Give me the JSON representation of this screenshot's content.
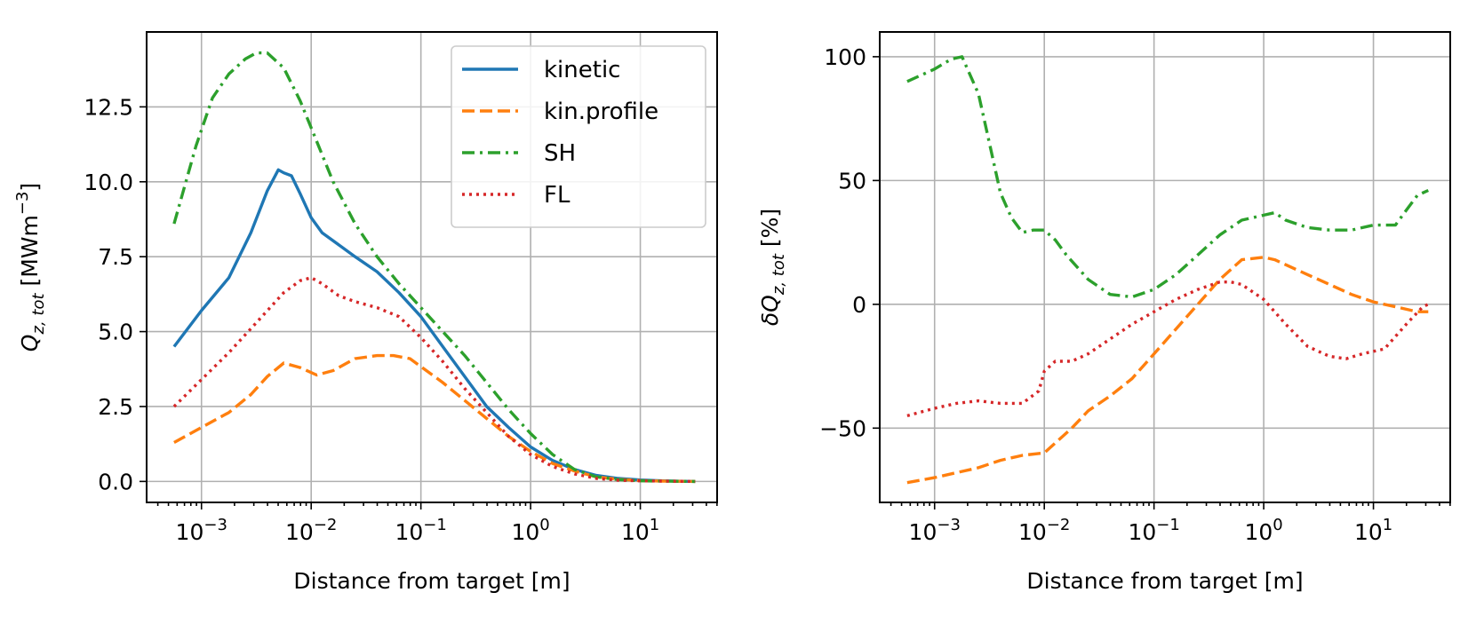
{
  "chart_data": [
    {
      "type": "line",
      "xscale": "log",
      "xlim_exp": [
        -3.5,
        1.7
      ],
      "ylim": [
        -0.7,
        15.0
      ],
      "xlabel": "Distance from target [m]",
      "ylabel": "Q_z,tot [MWm^-3]",
      "ylabel_parts": {
        "q": "Q",
        "sub": "z, tot",
        "unit_pre": " [MWm",
        "unit_sup": "−3",
        "unit_post": "]"
      },
      "x_ticks": [
        {
          "exp": -3,
          "base": "10",
          "sup": "−3"
        },
        {
          "exp": -2,
          "base": "10",
          "sup": "−2"
        },
        {
          "exp": -1,
          "base": "10",
          "sup": "−1"
        },
        {
          "exp": 0,
          "base": "10",
          "sup": "0"
        },
        {
          "exp": 1,
          "base": "10",
          "sup": "1"
        }
      ],
      "y_ticks": [
        {
          "value": 0.0,
          "label": "0.0"
        },
        {
          "value": 2.5,
          "label": "2.5"
        },
        {
          "value": 5.0,
          "label": "5.0"
        },
        {
          "value": 7.5,
          "label": "7.5"
        },
        {
          "value": 10.0,
          "label": "10.0"
        },
        {
          "value": 12.5,
          "label": "12.5"
        }
      ],
      "grid": true,
      "legend": {
        "position": "top-right",
        "entries": [
          {
            "label": "kinetic",
            "color": "#1f77b4",
            "dash": "solid"
          },
          {
            "label": "kin.profile",
            "color": "#ff7f0e",
            "dash": "dashed"
          },
          {
            "label": "SH",
            "color": "#2ca02c",
            "dash": "dashdot"
          },
          {
            "label": "FL",
            "color": "#d62728",
            "dash": "dotted"
          }
        ]
      },
      "series": [
        {
          "name": "kinetic",
          "color": "#1f77b4",
          "dash": "solid",
          "log10x": [
            -3.25,
            -3.0,
            -2.75,
            -2.55,
            -2.4,
            -2.3,
            -2.25,
            -2.18,
            -2.1,
            -2.0,
            -1.9,
            -1.75,
            -1.6,
            -1.4,
            -1.2,
            -1.0,
            -0.8,
            -0.6,
            -0.4,
            -0.2,
            0.0,
            0.2,
            0.4,
            0.6,
            0.8,
            1.0,
            1.2,
            1.5
          ],
          "y": [
            4.5,
            5.7,
            6.8,
            8.3,
            9.7,
            10.4,
            10.3,
            10.2,
            9.6,
            8.8,
            8.3,
            7.9,
            7.5,
            7.0,
            6.3,
            5.5,
            4.5,
            3.5,
            2.5,
            1.8,
            1.15,
            0.7,
            0.4,
            0.2,
            0.1,
            0.05,
            0.02,
            0.0
          ]
        },
        {
          "name": "kin.profile",
          "color": "#ff7f0e",
          "dash": "dashed",
          "log10x": [
            -3.25,
            -3.0,
            -2.75,
            -2.55,
            -2.4,
            -2.25,
            -2.1,
            -1.95,
            -1.8,
            -1.6,
            -1.4,
            -1.25,
            -1.1,
            -0.95,
            -0.8,
            -0.6,
            -0.4,
            -0.2,
            0.0,
            0.2,
            0.4,
            0.6,
            0.8,
            1.0,
            1.2,
            1.5
          ],
          "y": [
            1.3,
            1.8,
            2.3,
            2.9,
            3.5,
            3.95,
            3.8,
            3.55,
            3.7,
            4.1,
            4.2,
            4.2,
            4.1,
            3.7,
            3.3,
            2.7,
            2.1,
            1.5,
            1.0,
            0.6,
            0.35,
            0.15,
            0.07,
            0.03,
            0.01,
            0.0
          ]
        },
        {
          "name": "SH",
          "color": "#2ca02c",
          "dash": "dashdot",
          "log10x": [
            -3.25,
            -3.05,
            -2.9,
            -2.75,
            -2.6,
            -2.5,
            -2.4,
            -2.25,
            -2.1,
            -2.0,
            -1.8,
            -1.6,
            -1.4,
            -1.2,
            -1.0,
            -0.8,
            -0.6,
            -0.4,
            -0.2,
            0.0,
            0.2,
            0.4,
            0.6,
            0.8,
            1.0,
            1.2,
            1.5
          ],
          "y": [
            8.6,
            11.2,
            12.8,
            13.6,
            14.1,
            14.3,
            14.3,
            13.8,
            12.7,
            11.8,
            10.0,
            8.6,
            7.5,
            6.6,
            5.8,
            5.0,
            4.2,
            3.3,
            2.4,
            1.6,
            0.9,
            0.4,
            0.15,
            0.06,
            0.02,
            0.01,
            0.0
          ]
        },
        {
          "name": "FL",
          "color": "#d62728",
          "dash": "dotted",
          "log10x": [
            -3.25,
            -3.0,
            -2.75,
            -2.5,
            -2.25,
            -2.1,
            -2.0,
            -1.9,
            -1.75,
            -1.6,
            -1.4,
            -1.2,
            -1.0,
            -0.8,
            -0.6,
            -0.4,
            -0.2,
            0.0,
            0.2,
            0.4,
            0.6,
            0.8,
            1.0,
            1.2,
            1.5
          ],
          "y": [
            2.5,
            3.4,
            4.3,
            5.3,
            6.3,
            6.7,
            6.8,
            6.6,
            6.2,
            6.0,
            5.8,
            5.5,
            4.8,
            4.0,
            3.1,
            2.3,
            1.5,
            0.9,
            0.5,
            0.25,
            0.1,
            0.04,
            0.02,
            0.01,
            0.0
          ]
        }
      ]
    },
    {
      "type": "line",
      "xscale": "log",
      "xlim_exp": [
        -3.5,
        1.7
      ],
      "ylim": [
        -80,
        110
      ],
      "xlabel": "Distance from target [m]",
      "ylabel": "δQ_z,tot [%]",
      "ylabel_parts": {
        "q": "δQ",
        "sub": "z, tot",
        "unit_pre": " [%]",
        "unit_sup": "",
        "unit_post": ""
      },
      "x_ticks": [
        {
          "exp": -3,
          "base": "10",
          "sup": "−3"
        },
        {
          "exp": -2,
          "base": "10",
          "sup": "−2"
        },
        {
          "exp": -1,
          "base": "10",
          "sup": "−1"
        },
        {
          "exp": 0,
          "base": "10",
          "sup": "0"
        },
        {
          "exp": 1,
          "base": "10",
          "sup": "1"
        }
      ],
      "y_ticks": [
        {
          "value": -50,
          "label": "−50"
        },
        {
          "value": 0,
          "label": "0"
        },
        {
          "value": 50,
          "label": "50"
        },
        {
          "value": 100,
          "label": "100"
        }
      ],
      "grid": true,
      "series": [
        {
          "name": "kin.profile",
          "color": "#ff7f0e",
          "dash": "dashed",
          "log10x": [
            -3.25,
            -3.0,
            -2.8,
            -2.6,
            -2.4,
            -2.2,
            -2.0,
            -1.9,
            -1.75,
            -1.6,
            -1.4,
            -1.2,
            -1.0,
            -0.8,
            -0.6,
            -0.4,
            -0.2,
            0.0,
            0.1,
            0.2,
            0.4,
            0.6,
            0.8,
            1.0,
            1.2,
            1.3,
            1.4,
            1.5
          ],
          "y": [
            -72,
            -70,
            -68,
            -66,
            -63,
            -61,
            -60,
            -56,
            -50,
            -43,
            -37,
            -30,
            -20,
            -10,
            0,
            10,
            18,
            19,
            18,
            16,
            12,
            8,
            4,
            1,
            -1,
            -2,
            -3,
            -3
          ]
        },
        {
          "name": "SH",
          "color": "#2ca02c",
          "dash": "dashdot",
          "log10x": [
            -3.25,
            -3.0,
            -2.85,
            -2.75,
            -2.6,
            -2.5,
            -2.4,
            -2.3,
            -2.2,
            -2.1,
            -2.0,
            -1.9,
            -1.8,
            -1.6,
            -1.4,
            -1.2,
            -1.0,
            -0.8,
            -0.6,
            -0.4,
            -0.2,
            0.0,
            0.1,
            0.2,
            0.4,
            0.6,
            0.8,
            1.0,
            1.2,
            1.3,
            1.4,
            1.5
          ],
          "y": [
            90,
            95,
            99,
            100,
            85,
            65,
            45,
            35,
            29,
            30,
            30,
            26,
            20,
            10,
            4,
            3,
            6,
            12,
            20,
            28,
            34,
            36,
            37,
            34,
            31,
            30,
            30,
            32,
            32,
            38,
            44,
            46
          ]
        },
        {
          "name": "FL",
          "color": "#d62728",
          "dash": "dotted",
          "log10x": [
            -3.25,
            -3.0,
            -2.8,
            -2.6,
            -2.4,
            -2.2,
            -2.05,
            -2.0,
            -1.9,
            -1.75,
            -1.6,
            -1.4,
            -1.2,
            -1.0,
            -0.8,
            -0.6,
            -0.4,
            -0.3,
            -0.2,
            0.0,
            0.2,
            0.4,
            0.6,
            0.75,
            0.9,
            1.1,
            1.3,
            1.45,
            1.5
          ],
          "y": [
            -45,
            -42,
            -40,
            -39,
            -40,
            -40,
            -35,
            -27,
            -23,
            -23,
            -20,
            -14,
            -8,
            -3,
            2,
            6,
            9,
            9,
            8,
            2,
            -8,
            -17,
            -21,
            -22,
            -20,
            -18,
            -8,
            -1,
            0
          ]
        }
      ]
    }
  ]
}
